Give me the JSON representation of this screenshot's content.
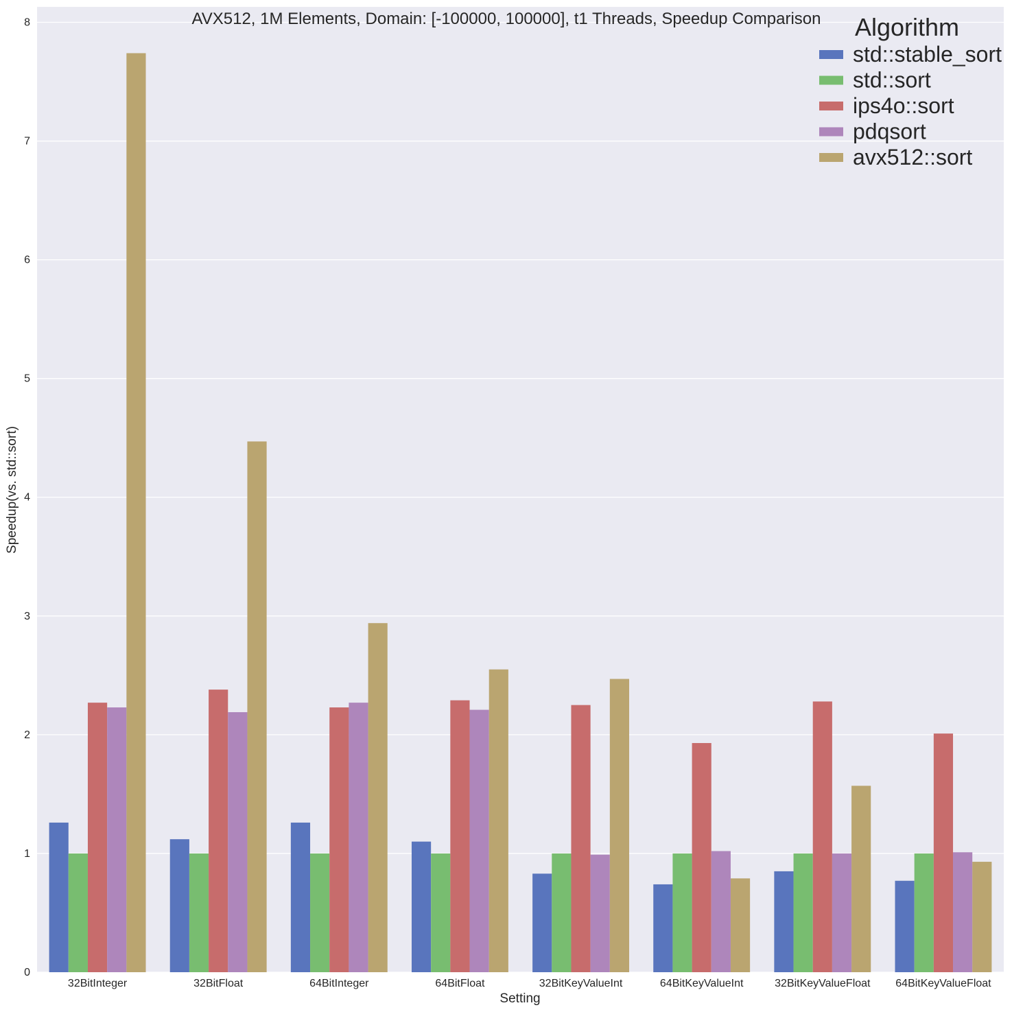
{
  "chart_data": {
    "type": "bar",
    "title": "AVX512, 1M Elements, Domain: [-100000, 100000], t1 Threads, Speedup Comparison",
    "xlabel": "Setting",
    "ylabel": "Speedup(vs. std::sort)",
    "ylim": [
      0,
      8.13
    ],
    "yticks": [
      0,
      1,
      2,
      3,
      4,
      5,
      6,
      7,
      8
    ],
    "grid": true,
    "legend_title": "Algorithm",
    "legend_position": "top-right",
    "categories": [
      "32BitInteger",
      "32BitFloat",
      "64BitInteger",
      "64BitFloat",
      "32BitKeyValueInt",
      "64BitKeyValueInt",
      "32BitKeyValueFloat",
      "64BitKeyValueFloat"
    ],
    "series": [
      {
        "name": "std::stable_sort",
        "color": "#5975bd",
        "values": [
          1.26,
          1.12,
          1.26,
          1.1,
          0.83,
          0.74,
          0.85,
          0.77
        ]
      },
      {
        "name": "std::sort",
        "color": "#78bd70",
        "values": [
          1.0,
          1.0,
          1.0,
          1.0,
          1.0,
          1.0,
          1.0,
          1.0
        ]
      },
      {
        "name": "ips4o::sort",
        "color": "#c76c6c",
        "values": [
          2.27,
          2.38,
          2.23,
          2.29,
          2.25,
          1.93,
          2.28,
          2.01
        ]
      },
      {
        "name": "pdqsort",
        "color": "#ae86bb",
        "values": [
          2.23,
          2.19,
          2.27,
          2.21,
          0.99,
          1.02,
          1.0,
          1.01
        ]
      },
      {
        "name": "avx512::sort",
        "color": "#baa570",
        "values": [
          7.74,
          4.47,
          2.94,
          2.55,
          2.47,
          0.79,
          1.57,
          0.93
        ]
      }
    ]
  }
}
